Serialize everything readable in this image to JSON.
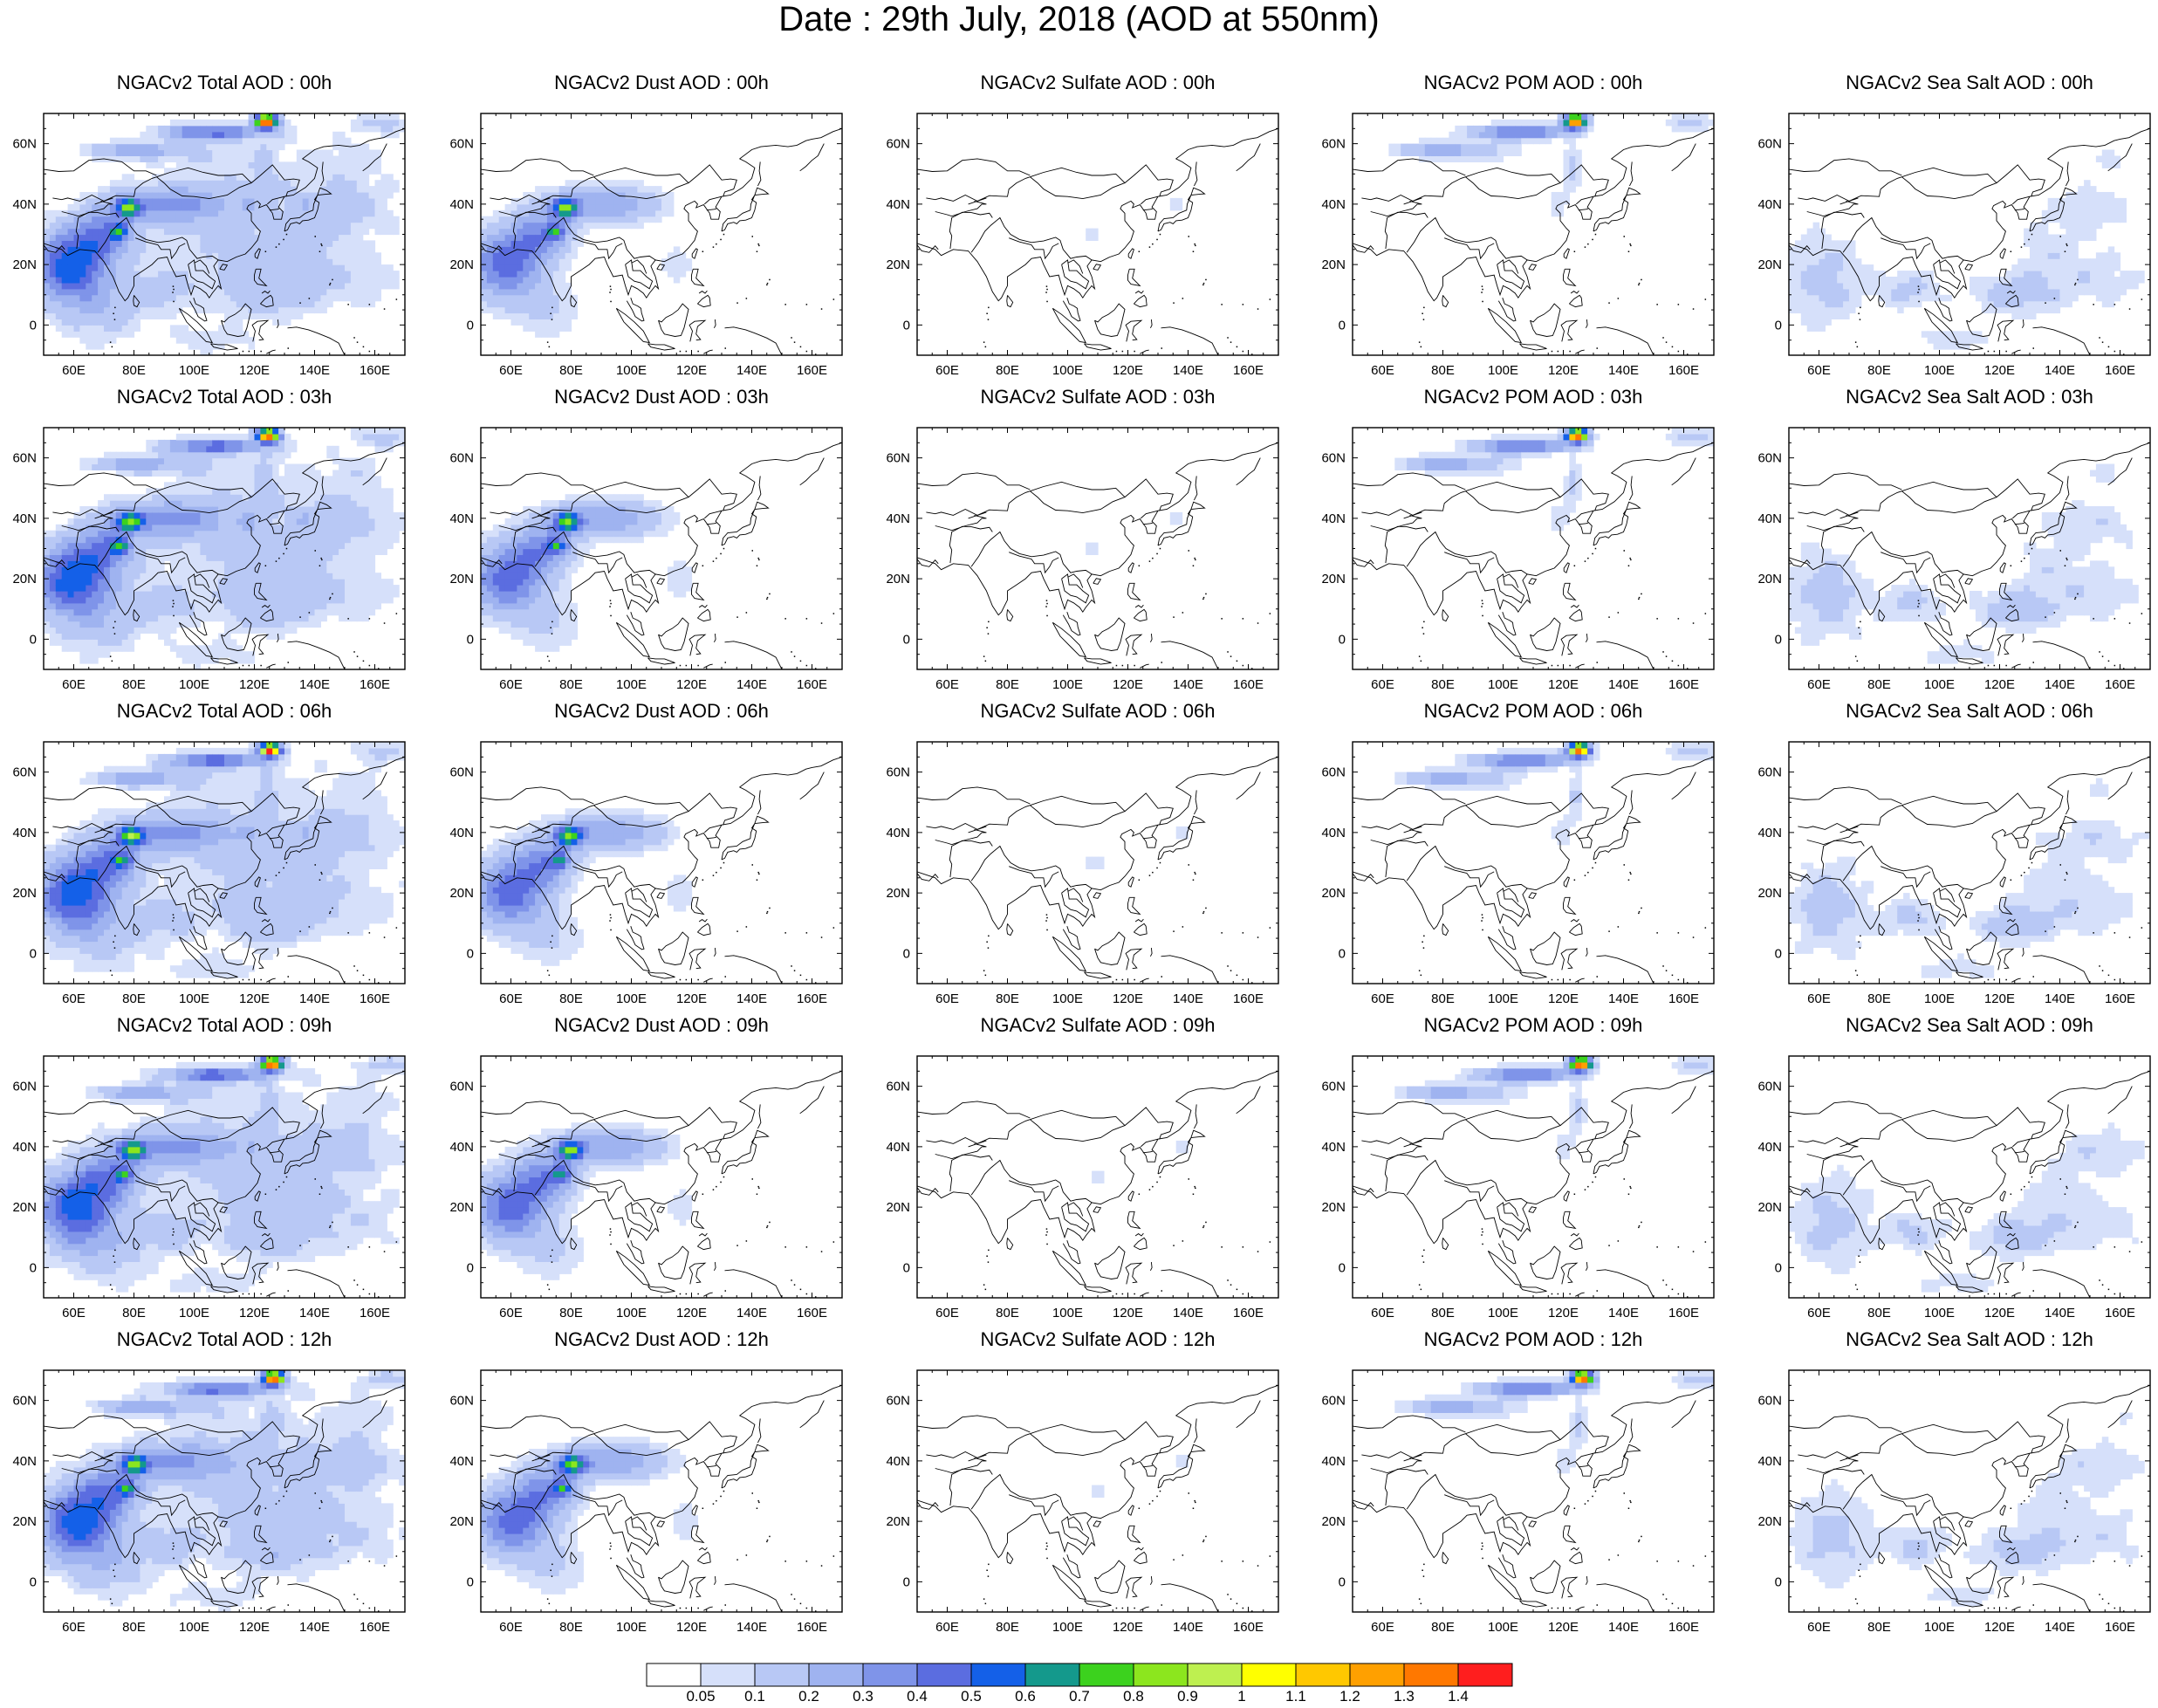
{
  "title": "Date : 29th July, 2018 (AOD at 550nm)",
  "panels": [
    {
      "title": "NGACv2 Total AOD : 00h",
      "species": "total",
      "hour": "00h"
    },
    {
      "title": "NGACv2 Dust AOD : 00h",
      "species": "dust",
      "hour": "00h"
    },
    {
      "title": "NGACv2 Sulfate AOD : 00h",
      "species": "sulfate",
      "hour": "00h"
    },
    {
      "title": "NGACv2 POM AOD : 00h",
      "species": "pom",
      "hour": "00h"
    },
    {
      "title": "NGACv2 Sea Salt AOD : 00h",
      "species": "seasalt",
      "hour": "00h"
    },
    {
      "title": "NGACv2 Total AOD : 03h",
      "species": "total",
      "hour": "03h"
    },
    {
      "title": "NGACv2 Dust AOD : 03h",
      "species": "dust",
      "hour": "03h"
    },
    {
      "title": "NGACv2 Sulfate AOD : 03h",
      "species": "sulfate",
      "hour": "03h"
    },
    {
      "title": "NGACv2 POM AOD : 03h",
      "species": "pom",
      "hour": "03h"
    },
    {
      "title": "NGACv2 Sea Salt AOD : 03h",
      "species": "seasalt",
      "hour": "03h"
    },
    {
      "title": "NGACv2 Total AOD : 06h",
      "species": "total",
      "hour": "06h"
    },
    {
      "title": "NGACv2 Dust AOD : 06h",
      "species": "dust",
      "hour": "06h"
    },
    {
      "title": "NGACv2 Sulfate AOD : 06h",
      "species": "sulfate",
      "hour": "06h"
    },
    {
      "title": "NGACv2 POM AOD : 06h",
      "species": "pom",
      "hour": "06h"
    },
    {
      "title": "NGACv2 Sea Salt AOD : 06h",
      "species": "seasalt",
      "hour": "06h"
    },
    {
      "title": "NGACv2 Total AOD : 09h",
      "species": "total",
      "hour": "09h"
    },
    {
      "title": "NGACv2 Dust AOD : 09h",
      "species": "dust",
      "hour": "09h"
    },
    {
      "title": "NGACv2 Sulfate AOD : 09h",
      "species": "sulfate",
      "hour": "09h"
    },
    {
      "title": "NGACv2 POM AOD : 09h",
      "species": "pom",
      "hour": "09h"
    },
    {
      "title": "NGACv2 Sea Salt  AOD : 09h",
      "species": "seasalt",
      "hour": "09h"
    },
    {
      "title": "NGACv2 Total AOD  : 12h",
      "species": "total",
      "hour": "12h"
    },
    {
      "title": "NGACv2 Dust AOD : 12h",
      "species": "dust",
      "hour": "12h"
    },
    {
      "title": "NGACv2 Sulfate AOD : 12h",
      "species": "sulfate",
      "hour": "12h"
    },
    {
      "title": "NGACv2 POM  AOD : 12h",
      "species": "pom",
      "hour": "12h"
    },
    {
      "title": "NGACv2 Sea Salt  AOD : 12h",
      "species": "seasalt",
      "hour": "12h"
    }
  ],
  "map": {
    "lon_range": [
      50,
      170
    ],
    "lat_range": [
      -10,
      70
    ],
    "lon_ticks": [
      "60E",
      "80E",
      "100E",
      "120E",
      "140E",
      "160E"
    ],
    "lon_tick_values": [
      60,
      80,
      100,
      120,
      140,
      160
    ],
    "lat_ticks": [
      "60N",
      "40N",
      "20N",
      "0"
    ],
    "lat_tick_values": [
      60,
      40,
      20,
      0
    ]
  },
  "colorbar": {
    "colors": [
      "#ffffff",
      "#d6e0fa",
      "#b8c8f5",
      "#9fb3f0",
      "#7f94e9",
      "#5b6de0",
      "#1460e8",
      "#14998c",
      "#3cd21e",
      "#8ce61e",
      "#bef050",
      "#ffff00",
      "#ffc800",
      "#ffa000",
      "#ff7800",
      "#ff1e1e"
    ],
    "labels": [
      "0.05",
      "0.1",
      "0.2",
      "0.3",
      "0.4",
      "0.5",
      "0.6",
      "0.7",
      "0.8",
      "0.9",
      "1",
      "1.1",
      "1.2",
      "1.3",
      "1.4"
    ]
  }
}
